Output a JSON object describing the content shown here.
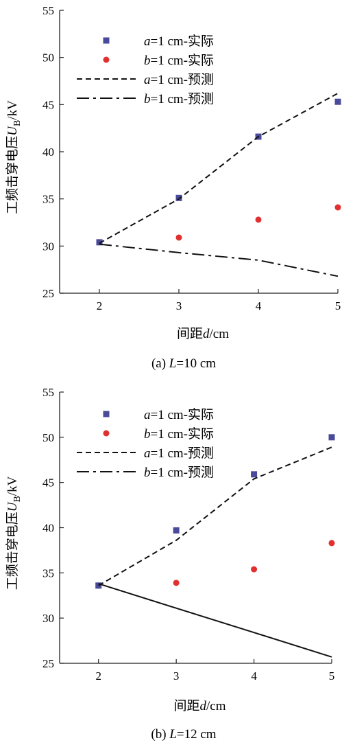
{
  "chart_data": [
    {
      "type": "line",
      "caption_prefix": "(a) ",
      "caption_var": "L",
      "caption_suffix": "=10 cm",
      "xlabel_pre": "间距",
      "xlabel_var": "d",
      "xlabel_post": "/cm",
      "ylabel_pre": "工频击穿电压",
      "ylabel_var": "U",
      "ylabel_sub": "B",
      "ylabel_post": "/kV",
      "xlim": [
        1.5,
        5
      ],
      "ylim": [
        25,
        55
      ],
      "xticks": [
        2,
        3,
        4,
        5
      ],
      "yticks": [
        25,
        30,
        35,
        40,
        45,
        50,
        55
      ],
      "legend_position": "top-left",
      "series": [
        {
          "name_var": "a",
          "name_rest": "=1 cm-实际",
          "kind": "marker-square",
          "color": "#4a4a9a",
          "x": [
            2,
            3,
            4,
            5
          ],
          "y": [
            30.4,
            35.1,
            41.6,
            45.3
          ]
        },
        {
          "name_var": "b",
          "name_rest": "=1 cm-实际",
          "kind": "marker-circle",
          "color": "#e03030",
          "x": [
            3,
            4,
            5
          ],
          "y": [
            30.9,
            32.8,
            34.1
          ]
        },
        {
          "name_var": "a",
          "name_rest": "=1 cm-预测",
          "kind": "line-dash",
          "color": "#111111",
          "x": [
            2,
            3,
            4,
            5
          ],
          "y": [
            30.3,
            35.0,
            41.6,
            46.2
          ]
        },
        {
          "name_var": "b",
          "name_rest": "=1 cm-预测",
          "kind": "line-dashdot",
          "color": "#111111",
          "x": [
            2,
            3,
            4,
            5
          ],
          "y": [
            30.2,
            29.3,
            28.5,
            26.8
          ]
        }
      ]
    },
    {
      "type": "line",
      "caption_prefix": "(b) ",
      "caption_var": "L",
      "caption_suffix": "=12 cm",
      "xlabel_pre": "间距",
      "xlabel_var": "d",
      "xlabel_post": "/cm",
      "ylabel_pre": "工频击穿电压",
      "ylabel_var": "U",
      "ylabel_sub": "B",
      "ylabel_post": "/kV",
      "xlim": [
        1.5,
        5
      ],
      "ylim": [
        25,
        55
      ],
      "xticks": [
        2,
        3,
        4,
        5
      ],
      "yticks": [
        25,
        30,
        35,
        40,
        45,
        50,
        55
      ],
      "legend_position": "top-right",
      "series": [
        {
          "name_var": "a",
          "name_rest": "=1 cm-实际",
          "kind": "marker-square",
          "color": "#4a4a9a",
          "x": [
            2,
            3,
            4,
            5
          ],
          "y": [
            33.6,
            39.7,
            45.9,
            50.0
          ]
        },
        {
          "name_var": "b",
          "name_rest": "=1 cm-实际",
          "kind": "marker-circle",
          "color": "#e03030",
          "x": [
            3,
            4,
            5
          ],
          "y": [
            33.9,
            35.4,
            38.3
          ]
        },
        {
          "name_var": "a",
          "name_rest": "=1 cm-预测",
          "kind": "line-dash",
          "color": "#111111",
          "x": [
            2,
            3,
            4,
            5
          ],
          "y": [
            33.6,
            38.6,
            45.4,
            48.9
          ]
        },
        {
          "name_var": "b",
          "name_rest": "=1 cm-预测",
          "kind": "line-dashdot",
          "color": "#111111",
          "x": [
            2,
            3,
            4,
            5
          ],
          "y": [
            33.8,
            31.1,
            28.4,
            25.7
          ]
        }
      ]
    }
  ]
}
